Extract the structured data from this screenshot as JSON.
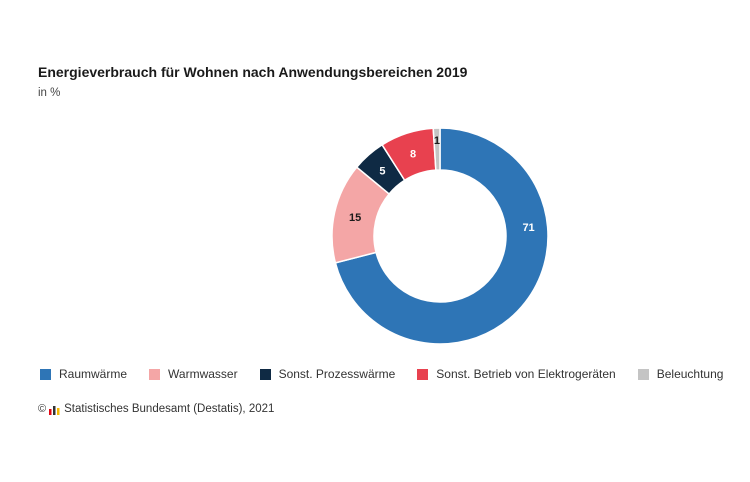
{
  "chart_data": {
    "type": "pie",
    "title": "Energieverbrauch für Wohnen nach Anwendungsbereichen 2019",
    "subtitle": "in %",
    "categories": [
      "Raumwärme",
      "Warmwasser",
      "Sonst. Prozesswärme",
      "Sonst. Betrieb von Elektrogeräten",
      "Beleuchtung"
    ],
    "values": [
      71,
      15,
      5,
      8,
      1
    ],
    "labels": [
      "71",
      "15",
      "5",
      "8",
      "1"
    ],
    "colors": [
      "#2e75b6",
      "#f4a6a6",
      "#0f2a44",
      "#e8414f",
      "#c4c4c4"
    ],
    "label_colors": [
      "#ffffff",
      "#1a1a1a",
      "#ffffff",
      "#ffffff",
      "#1a1a1a"
    ],
    "legend_position": "bottom",
    "donut": true
  },
  "footer": {
    "copyright_symbol": "©",
    "logo_icon": "destatis-logo-icon",
    "source": "Statistisches Bundesamt (Destatis), 2021"
  }
}
